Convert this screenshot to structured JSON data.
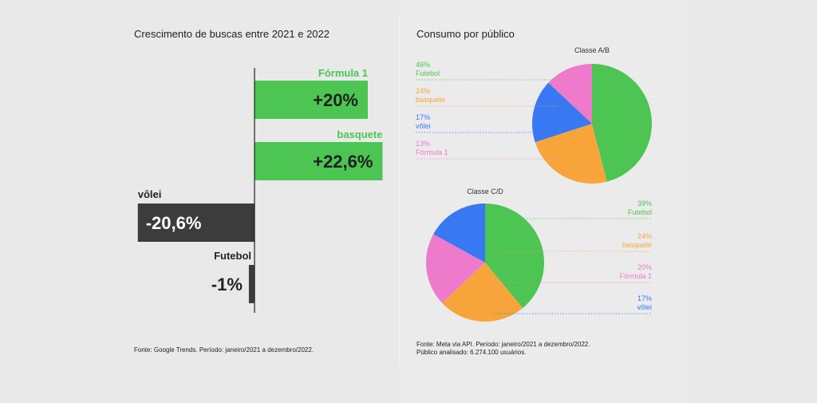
{
  "left": {
    "title": "Crescimento de buscas entre 2021 e 2022",
    "source": "Fonte: Google Trends. Período: janeiro/2021 a dezembro/2022."
  },
  "right": {
    "title": "Consumo por público",
    "source_line1": "Fonte: Meta via API. Período: janeiro/2021 a dezembro/2022.",
    "source_line2": "Público analisado: 6.274.100 usuários."
  },
  "colors": {
    "green": "#4cc552",
    "orange": "#f7a53b",
    "blue": "#3878f2",
    "pink": "#ee7acb",
    "dark": "#3c3c3c"
  },
  "chart_data": [
    {
      "type": "bar",
      "orientation": "horizontal",
      "title": "Crescimento de buscas entre 2021 e 2022",
      "categories": [
        "Fórmula 1",
        "basquete",
        "vôlei",
        "Futebol"
      ],
      "values": [
        20,
        22.6,
        -20.6,
        -1
      ],
      "value_labels": [
        "+20%",
        "+22,6%",
        "-20,6%",
        "-1%"
      ],
      "unit": "%"
    },
    {
      "type": "pie",
      "title": "Classe A/B",
      "labels": [
        "Futebol",
        "basquete",
        "vôlei",
        "Fórmula 1"
      ],
      "values": [
        46,
        24,
        17,
        13
      ],
      "value_labels": [
        "46%",
        "24%",
        "17%",
        "13%"
      ]
    },
    {
      "type": "pie",
      "title": "Classe C/D",
      "labels": [
        "Futebol",
        "basquete",
        "Fórmula 1",
        "vôlei"
      ],
      "values": [
        39,
        24,
        20,
        17
      ],
      "value_labels": [
        "39%",
        "24%",
        "20%",
        "17%"
      ]
    }
  ]
}
